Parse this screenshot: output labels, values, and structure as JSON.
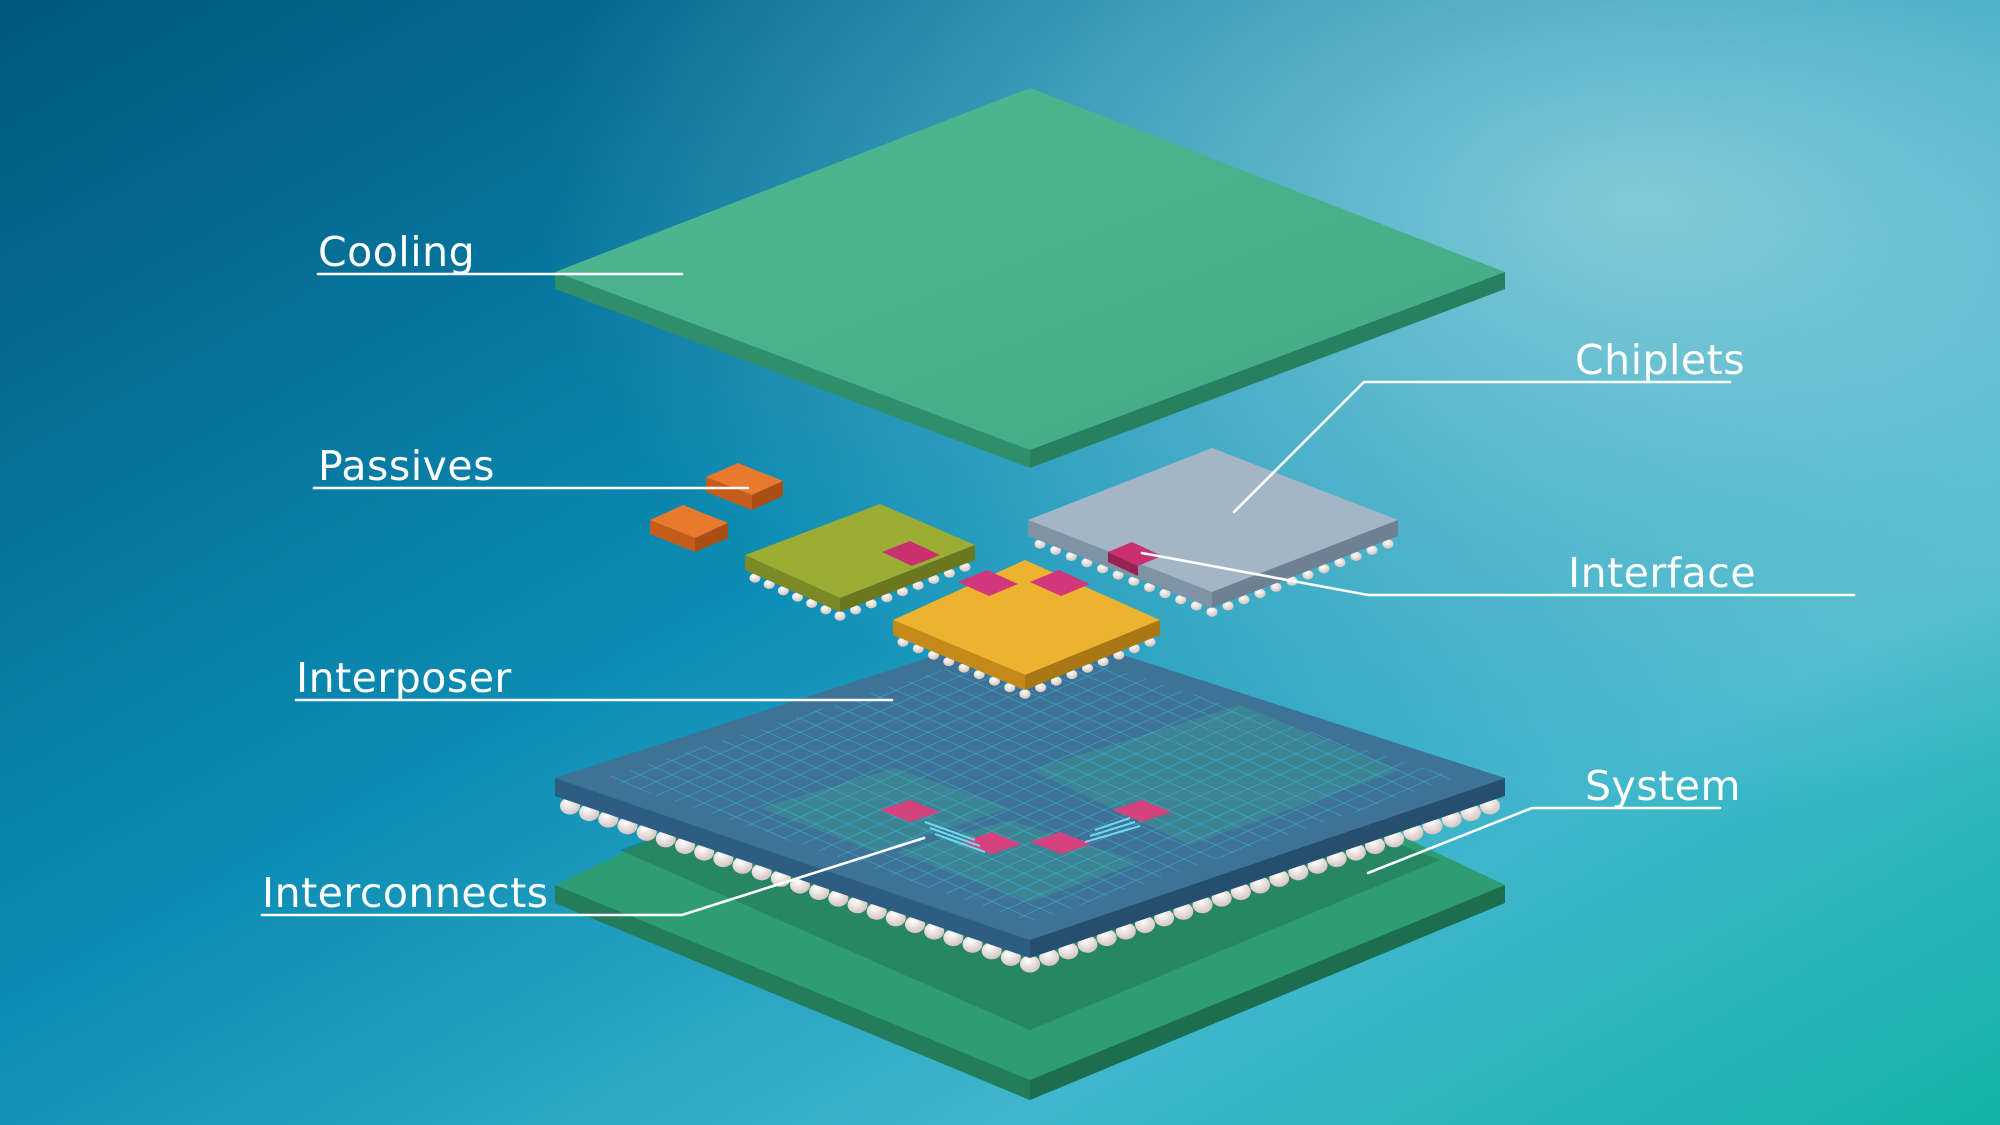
{
  "labels": {
    "cooling": "Cooling",
    "passives": "Passives",
    "chiplets": "Chiplets",
    "interface": "Interface",
    "interposer": "Interposer",
    "interconnects": "Interconnects",
    "system": "System"
  },
  "colors": {
    "background_start": "#005f86",
    "background_mid": "#1ea7c6",
    "background_end": "#14b5a8",
    "cooling_plate": "#47ad8a",
    "system_board": "#2e9a70",
    "interposer": "#3f7498",
    "interposer_grid": "#2fb3d3",
    "chiplet_gray": "#a2b4c4",
    "chiplet_olive": "#9cac33",
    "chiplet_gold": "#edb12f",
    "passive_orange": "#e7762a",
    "interface_pink": "#d6377f",
    "solder_bump": "#ece2dd",
    "leader_line": "#ffffff"
  }
}
